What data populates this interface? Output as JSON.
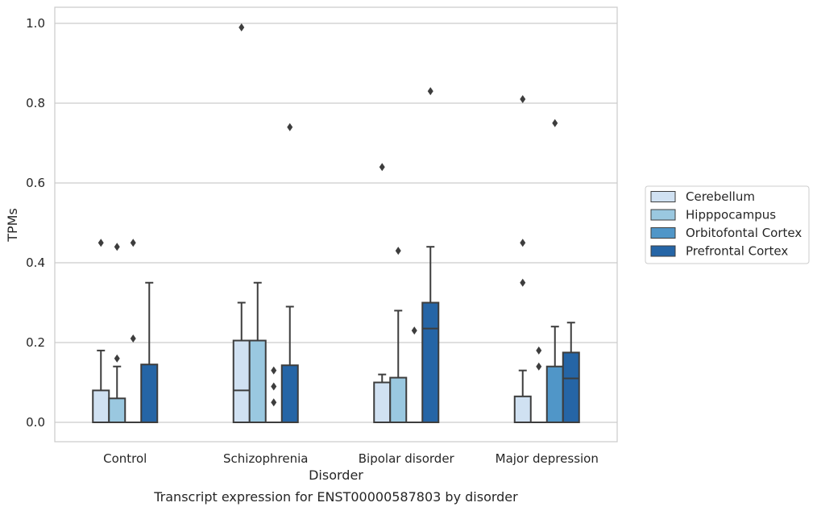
{
  "chart_data": {
    "type": "box",
    "caption": "Transcript expression for ENST00000587803 by disorder",
    "xlabel": "Disorder",
    "ylabel": "TPMs",
    "ylim": [
      -0.05,
      1.04
    ],
    "yticks": [
      0.0,
      0.2,
      0.4,
      0.6,
      0.8,
      1.0
    ],
    "ytick_labels": [
      "0.0",
      "0.2",
      "0.4",
      "0.6",
      "0.8",
      "1.0"
    ],
    "grid": "horizontal",
    "legend_position": "right",
    "categories": [
      "Control",
      "Schizophrenia",
      "Bipolar disorder",
      "Major depression"
    ],
    "series": [
      {
        "name": "Cerebellum",
        "color": "#d0e1f2",
        "boxes": [
          {
            "q1": 0.0,
            "median": 0.0,
            "q3": 0.08,
            "whisker_low": 0.0,
            "whisker_high": 0.18,
            "outliers": [
              0.45
            ]
          },
          {
            "q1": 0.0,
            "median": 0.08,
            "q3": 0.205,
            "whisker_low": 0.0,
            "whisker_high": 0.3,
            "outliers": [
              0.99
            ]
          },
          {
            "q1": 0.0,
            "median": 0.0,
            "q3": 0.1,
            "whisker_low": 0.0,
            "whisker_high": 0.12,
            "outliers": [
              0.64
            ]
          },
          {
            "q1": 0.0,
            "median": 0.0,
            "q3": 0.065,
            "whisker_low": 0.0,
            "whisker_high": 0.13,
            "outliers": [
              0.35,
              0.45,
              0.81
            ]
          }
        ]
      },
      {
        "name": "Hipppocampus",
        "color": "#9ac8e0",
        "boxes": [
          {
            "q1": 0.0,
            "median": 0.0,
            "q3": 0.06,
            "whisker_low": 0.0,
            "whisker_high": 0.14,
            "outliers": [
              0.16,
              0.44
            ]
          },
          {
            "q1": 0.0,
            "median": 0.0,
            "q3": 0.205,
            "whisker_low": 0.0,
            "whisker_high": 0.35,
            "outliers": []
          },
          {
            "q1": 0.0,
            "median": 0.0,
            "q3": 0.112,
            "whisker_low": 0.0,
            "whisker_high": 0.28,
            "outliers": [
              0.43
            ]
          },
          {
            "q1": 0.0,
            "median": 0.0,
            "q3": 0.0,
            "whisker_low": 0.0,
            "whisker_high": 0.0,
            "outliers": [
              0.14,
              0.18
            ]
          }
        ]
      },
      {
        "name": "Orbitofontal Cortex",
        "color": "#5096c8",
        "boxes": [
          {
            "q1": 0.0,
            "median": 0.0,
            "q3": 0.0,
            "whisker_low": 0.0,
            "whisker_high": 0.0,
            "outliers": [
              0.21,
              0.45
            ]
          },
          {
            "q1": 0.0,
            "median": 0.0,
            "q3": 0.0,
            "whisker_low": 0.0,
            "whisker_high": 0.0,
            "outliers": [
              0.05,
              0.09,
              0.13
            ]
          },
          {
            "q1": 0.0,
            "median": 0.0,
            "q3": 0.0,
            "whisker_low": 0.0,
            "whisker_high": 0.0,
            "outliers": [
              0.23
            ]
          },
          {
            "q1": 0.0,
            "median": 0.0,
            "q3": 0.14,
            "whisker_low": 0.0,
            "whisker_high": 0.24,
            "outliers": [
              0.75
            ]
          }
        ]
      },
      {
        "name": "Prefrontal Cortex",
        "color": "#2565a6",
        "boxes": [
          {
            "q1": 0.0,
            "median": 0.0,
            "q3": 0.145,
            "whisker_low": 0.0,
            "whisker_high": 0.35,
            "outliers": []
          },
          {
            "q1": 0.0,
            "median": 0.0,
            "q3": 0.143,
            "whisker_low": 0.0,
            "whisker_high": 0.29,
            "outliers": [
              0.74
            ]
          },
          {
            "q1": 0.0,
            "median": 0.235,
            "q3": 0.3,
            "whisker_low": 0.0,
            "whisker_high": 0.44,
            "outliers": [
              0.83
            ]
          },
          {
            "q1": 0.0,
            "median": 0.11,
            "q3": 0.175,
            "whisker_low": 0.0,
            "whisker_high": 0.25,
            "outliers": []
          }
        ]
      }
    ]
  }
}
